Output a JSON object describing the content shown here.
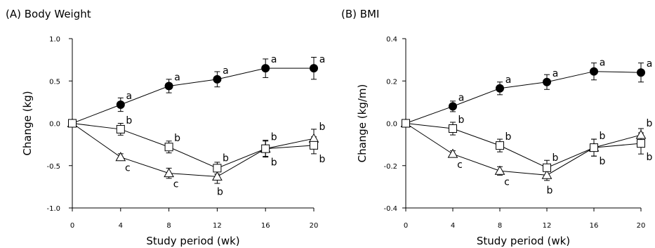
{
  "chart_data": [
    {
      "type": "line",
      "title": "(A) Body Weight",
      "xlabel": "Study period (wk)",
      "ylabel": "Change (kg)",
      "x": [
        0,
        4,
        8,
        12,
        16,
        20
      ],
      "x_ticks": [
        "0",
        "4",
        "8",
        "12",
        "16",
        "20"
      ],
      "y_ticks": [
        "1.0",
        "0.5",
        "0.0",
        "-0.5",
        "-1.0"
      ],
      "xlim": [
        0,
        20
      ],
      "ylim": [
        -1.0,
        1.0
      ],
      "grid": false,
      "series": [
        {
          "marker": "filled-circle",
          "values": [
            0.0,
            0.22,
            0.44,
            0.52,
            0.65,
            0.65
          ],
          "errors": [
            0.0,
            0.08,
            0.08,
            0.09,
            0.11,
            0.13
          ],
          "labels": [
            "",
            "a",
            "a",
            "a",
            "a",
            "a"
          ]
        },
        {
          "marker": "open-square",
          "values": [
            0.0,
            -0.07,
            -0.28,
            -0.53,
            -0.3,
            -0.26
          ],
          "errors": [
            0.0,
            0.07,
            0.07,
            0.07,
            0.09,
            0.1
          ],
          "labels": [
            "",
            "b",
            "b",
            "b",
            "b",
            "b"
          ]
        },
        {
          "marker": "open-triangle",
          "values": [
            0.0,
            -0.4,
            -0.59,
            -0.63,
            -0.3,
            -0.18
          ],
          "errors": [
            0.0,
            0.04,
            0.06,
            0.08,
            0.1,
            0.11
          ],
          "labels": [
            "",
            "c",
            "c",
            "b",
            "b",
            "b"
          ]
        }
      ]
    },
    {
      "type": "line",
      "title": "(B) BMI",
      "xlabel": "Study period (wk)",
      "ylabel": "Change (kg/m)",
      "x": [
        0,
        4,
        8,
        12,
        16,
        20
      ],
      "x_ticks": [
        "0",
        "4",
        "8",
        "12",
        "16",
        "20"
      ],
      "y_ticks": [
        "0.4",
        "0.2",
        "0.0",
        "-0.2",
        "-0.4"
      ],
      "xlim": [
        0,
        20
      ],
      "ylim": [
        -0.4,
        0.4
      ],
      "grid": false,
      "series": [
        {
          "marker": "filled-circle",
          "values": [
            0.0,
            0.08,
            0.165,
            0.195,
            0.245,
            0.24
          ],
          "errors": [
            0.0,
            0.025,
            0.03,
            0.035,
            0.04,
            0.045
          ],
          "labels": [
            "",
            "a",
            "a",
            "a",
            "a",
            "a"
          ]
        },
        {
          "marker": "open-square",
          "values": [
            0.0,
            -0.025,
            -0.105,
            -0.21,
            -0.115,
            -0.095
          ],
          "errors": [
            0.0,
            0.03,
            0.03,
            0.035,
            0.04,
            0.05
          ],
          "labels": [
            "",
            "b",
            "b",
            "b",
            "b",
            "b"
          ]
        },
        {
          "marker": "open-triangle",
          "values": [
            0.0,
            -0.145,
            -0.225,
            -0.245,
            -0.115,
            -0.055
          ],
          "errors": [
            0.0,
            0.015,
            0.02,
            0.025,
            0.04,
            0.03
          ],
          "labels": [
            "",
            "c",
            "c",
            "b",
            "b",
            "b"
          ]
        }
      ]
    }
  ]
}
